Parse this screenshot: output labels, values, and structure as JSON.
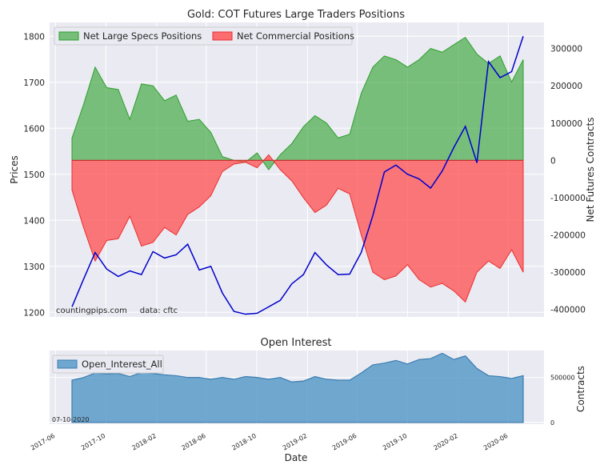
{
  "chart_data": [
    {
      "type": "area",
      "title": "Gold: COT Futures Large Traders Positions",
      "ylabel_left": "Prices",
      "ylabel_right": "Net Futures Contracts",
      "ylim_left": [
        1190,
        1830
      ],
      "ylim_right": [
        -420000,
        370000
      ],
      "yticks_left": [
        "1200",
        "1300",
        "1400",
        "1500",
        "1600",
        "1700",
        "1800"
      ],
      "yticks_right": [
        "-400000",
        "-300000",
        "-200000",
        "-100000",
        "0",
        "100000",
        "200000",
        "300000"
      ],
      "grid": true,
      "legend_position": "top-left",
      "watermark": "countingpips.com     data: cftc",
      "colors": {
        "specs": "#2ca02c",
        "commercial": "#ff4d4d",
        "price": "#0000cc"
      },
      "x": [
        "2017-07-11",
        "2017-08-08",
        "2017-09-05",
        "2017-10-03",
        "2017-10-31",
        "2017-11-28",
        "2017-12-26",
        "2018-01-23",
        "2018-02-20",
        "2018-03-20",
        "2018-04-17",
        "2018-05-15",
        "2018-06-12",
        "2018-07-10",
        "2018-08-07",
        "2018-09-04",
        "2018-10-02",
        "2018-10-30",
        "2018-11-27",
        "2018-12-25",
        "2019-01-22",
        "2019-02-19",
        "2019-03-19",
        "2019-04-16",
        "2019-05-14",
        "2019-06-11",
        "2019-07-09",
        "2019-08-06",
        "2019-09-03",
        "2019-10-01",
        "2019-10-29",
        "2019-11-26",
        "2019-12-24",
        "2020-01-21",
        "2020-02-18",
        "2020-03-17",
        "2020-04-14",
        "2020-05-12",
        "2020-06-09",
        "2020-07-07"
      ],
      "series": [
        {
          "name": "Net Large Specs Positions",
          "axis": "right",
          "values": [
            60000,
            150000,
            250000,
            195000,
            190000,
            110000,
            205000,
            200000,
            160000,
            175000,
            105000,
            110000,
            75000,
            10000,
            0,
            -5000,
            20000,
            -25000,
            15000,
            45000,
            90000,
            120000,
            100000,
            60000,
            70000,
            180000,
            250000,
            280000,
            270000,
            250000,
            270000,
            300000,
            290000,
            310000,
            330000,
            285000,
            260000,
            280000,
            210000,
            270000
          ]
        },
        {
          "name": "Net Commercial Positions",
          "axis": "right",
          "values": [
            -80000,
            -180000,
            -270000,
            -215000,
            -210000,
            -150000,
            -230000,
            -220000,
            -180000,
            -200000,
            -145000,
            -125000,
            -95000,
            -30000,
            -10000,
            -5000,
            -20000,
            15000,
            -25000,
            -55000,
            -100000,
            -140000,
            -120000,
            -75000,
            -90000,
            -200000,
            -300000,
            -320000,
            -310000,
            -280000,
            -320000,
            -340000,
            -330000,
            -350000,
            -380000,
            -300000,
            -270000,
            -290000,
            -240000,
            -300000
          ]
        },
        {
          "name": "Gold Price",
          "axis": "left",
          "values": [
            1212,
            1272,
            1330,
            1294,
            1278,
            1290,
            1282,
            1332,
            1318,
            1325,
            1348,
            1292,
            1300,
            1242,
            1202,
            1196,
            1198,
            1212,
            1226,
            1262,
            1282,
            1330,
            1303,
            1282,
            1283,
            1330,
            1410,
            1505,
            1520,
            1500,
            1490,
            1470,
            1507,
            1558,
            1604,
            1525,
            1745,
            1710,
            1723,
            1800
          ]
        }
      ]
    },
    {
      "type": "area",
      "title": "Open Interest",
      "ylabel": "Contracts",
      "ylim": [
        -20000,
        800000
      ],
      "yticks": [
        "0",
        "500000"
      ],
      "xlabel": "Date",
      "xticks": [
        "2017-06",
        "2017-10",
        "2018-02",
        "2018-06",
        "2018-10",
        "2019-02",
        "2019-06",
        "2019-10",
        "2020-02",
        "2020-06"
      ],
      "legend_position": "top-left",
      "date_label": "07-10-2020",
      "colors": {
        "open_interest": "#5a9bc9"
      },
      "series": [
        {
          "name": "Open_Interest_All",
          "values": [
            470000,
            500000,
            550000,
            540000,
            545000,
            510000,
            555000,
            545000,
            530000,
            520000,
            500000,
            500000,
            480000,
            500000,
            480000,
            510000,
            500000,
            480000,
            500000,
            450000,
            460000,
            510000,
            480000,
            470000,
            470000,
            550000,
            640000,
            660000,
            690000,
            650000,
            700000,
            710000,
            770000,
            700000,
            740000,
            600000,
            520000,
            510000,
            490000,
            520000
          ]
        }
      ]
    }
  ]
}
